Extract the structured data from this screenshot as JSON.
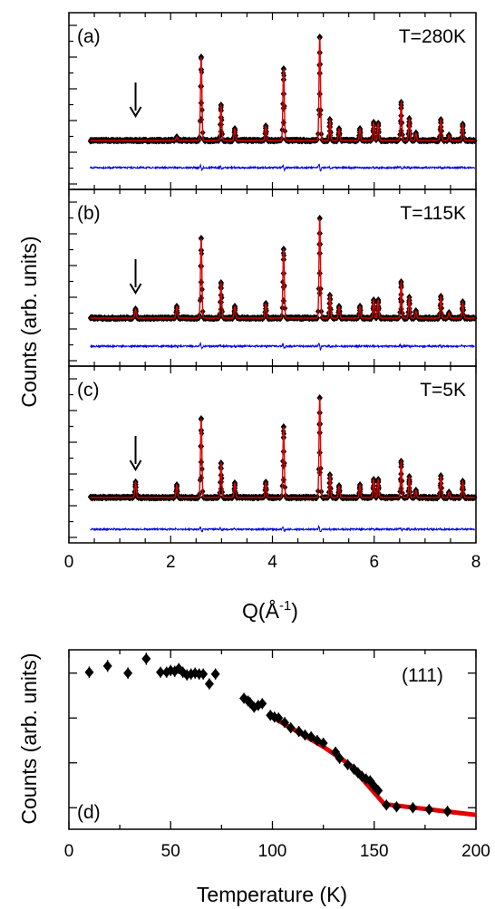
{
  "chart_data": [
    {
      "type": "line",
      "panels": [
        {
          "label": "(a)",
          "temperature": "T=280K",
          "arrow_q": 1.31,
          "peaks": [
            {
              "q": 2.12,
              "h": 4
            },
            {
              "q": 2.6,
              "h": 92
            },
            {
              "q": 2.99,
              "h": 39
            },
            {
              "q": 3.26,
              "h": 13
            },
            {
              "q": 3.87,
              "h": 16
            },
            {
              "q": 4.22,
              "h": 79
            },
            {
              "q": 4.93,
              "h": 114
            },
            {
              "q": 5.13,
              "h": 23
            },
            {
              "q": 5.31,
              "h": 13
            },
            {
              "q": 5.72,
              "h": 13
            },
            {
              "q": 5.99,
              "h": 20
            },
            {
              "q": 6.08,
              "h": 19
            },
            {
              "q": 6.53,
              "h": 42
            },
            {
              "q": 6.69,
              "h": 24
            },
            {
              "q": 6.82,
              "h": 8
            },
            {
              "q": 7.31,
              "h": 23
            },
            {
              "q": 7.47,
              "h": 6
            },
            {
              "q": 7.74,
              "h": 18
            }
          ]
        },
        {
          "label": "(b)",
          "temperature": "T=115K",
          "arrow_q": 1.31,
          "peaks": [
            {
              "q": 1.31,
              "h": 10
            },
            {
              "q": 2.12,
              "h": 13
            },
            {
              "q": 2.6,
              "h": 88
            },
            {
              "q": 2.99,
              "h": 39
            },
            {
              "q": 3.26,
              "h": 13
            },
            {
              "q": 3.87,
              "h": 16
            },
            {
              "q": 4.22,
              "h": 76
            },
            {
              "q": 4.93,
              "h": 110
            },
            {
              "q": 5.13,
              "h": 25
            },
            {
              "q": 5.31,
              "h": 13
            },
            {
              "q": 5.72,
              "h": 13
            },
            {
              "q": 5.99,
              "h": 20
            },
            {
              "q": 6.08,
              "h": 20
            },
            {
              "q": 6.53,
              "h": 40
            },
            {
              "q": 6.69,
              "h": 23
            },
            {
              "q": 6.82,
              "h": 8
            },
            {
              "q": 7.31,
              "h": 24
            },
            {
              "q": 7.47,
              "h": 6
            },
            {
              "q": 7.74,
              "h": 18
            }
          ]
        },
        {
          "label": "(c)",
          "temperature": "T=5K",
          "arrow_q": 1.31,
          "peaks": [
            {
              "q": 1.31,
              "h": 17
            },
            {
              "q": 2.12,
              "h": 14
            },
            {
              "q": 2.6,
              "h": 87
            },
            {
              "q": 2.99,
              "h": 38
            },
            {
              "q": 3.26,
              "h": 16
            },
            {
              "q": 3.87,
              "h": 17
            },
            {
              "q": 4.22,
              "h": 78
            },
            {
              "q": 4.93,
              "h": 110
            },
            {
              "q": 5.13,
              "h": 25
            },
            {
              "q": 5.31,
              "h": 13
            },
            {
              "q": 5.72,
              "h": 14
            },
            {
              "q": 5.99,
              "h": 20
            },
            {
              "q": 6.08,
              "h": 20
            },
            {
              "q": 6.53,
              "h": 40
            },
            {
              "q": 6.69,
              "h": 23
            },
            {
              "q": 6.82,
              "h": 8
            },
            {
              "q": 7.31,
              "h": 24
            },
            {
              "q": 7.47,
              "h": 6
            },
            {
              "q": 7.74,
              "h": 18
            }
          ]
        }
      ],
      "xlabel": "Q(Å",
      "xlabel_sup": "-1",
      "xlabel_end": ")",
      "ylabel": "Counts (arb. units)",
      "xlim": [
        0,
        8
      ],
      "x_ticks": [
        "0",
        "2",
        "4",
        "6",
        "8"
      ],
      "series": [
        {
          "role": "observed",
          "marker": "diamond",
          "color": "#000000"
        },
        {
          "role": "calculated",
          "color": "#e00000"
        },
        {
          "role": "difference",
          "color": "#0000ee"
        }
      ]
    },
    {
      "type": "scatter",
      "panel_label": "(d)",
      "reflection": "(111)",
      "xlabel": "Temperature (K)",
      "ylabel": "Counts (arb. units)",
      "xlim": [
        0,
        200
      ],
      "x_ticks": [
        "0",
        "50",
        "100",
        "150",
        "200"
      ],
      "ylim": [
        0,
        100
      ],
      "points": [
        [
          10,
          87.5,
          2.2
        ],
        [
          19,
          91,
          2.3
        ],
        [
          29,
          87,
          2.2
        ],
        [
          38,
          95,
          2.4
        ],
        [
          45,
          87.5,
          2.1
        ],
        [
          48,
          87.5,
          2.1
        ],
        [
          50,
          88.5,
          2.1
        ],
        [
          52,
          88,
          2.1
        ],
        [
          54,
          89.5,
          2.1
        ],
        [
          56,
          87.5,
          2.1
        ],
        [
          58,
          86,
          2.1
        ],
        [
          60,
          86.5,
          2.1
        ],
        [
          62,
          87,
          2.1
        ],
        [
          64,
          86.5,
          2.1
        ],
        [
          66,
          86.5,
          2.1
        ],
        [
          69,
          81,
          2.1
        ],
        [
          72,
          86.5,
          2.1
        ],
        [
          86,
          73,
          2.0
        ],
        [
          88,
          71.5,
          2.0
        ],
        [
          89,
          70.5,
          2.0
        ],
        [
          91,
          68,
          2.0
        ],
        [
          93,
          69,
          2.0
        ],
        [
          95,
          70,
          2.0
        ],
        [
          99,
          63.5,
          2.0
        ],
        [
          101,
          62.5,
          2.0
        ],
        [
          103,
          62,
          2.0
        ],
        [
          106,
          59.5,
          2.0
        ],
        [
          109,
          56.5,
          2.0
        ],
        [
          113,
          54.5,
          2.0
        ],
        [
          116,
          52.5,
          2.0
        ],
        [
          119,
          51.5,
          2.0
        ],
        [
          122,
          49.5,
          2.0
        ],
        [
          125,
          48,
          2.0
        ],
        [
          131,
          43,
          2.0
        ],
        [
          133,
          39.5,
          2.0
        ],
        [
          137,
          36,
          2.0
        ],
        [
          140,
          33.5,
          2.0
        ],
        [
          142,
          31.5,
          2.0
        ],
        [
          144,
          29.5,
          2.0
        ],
        [
          146,
          28,
          2.0
        ],
        [
          148,
          27,
          2.0
        ],
        [
          150,
          24,
          2.0
        ],
        [
          152,
          21.5,
          2.0
        ],
        [
          156,
          13.5,
          2.0
        ],
        [
          161,
          12.5,
          2.0
        ],
        [
          169,
          12,
          2.0
        ],
        [
          177,
          11,
          2.0
        ],
        [
          186,
          10,
          2.0
        ]
      ],
      "fit": [
        [
          100,
          62.5
        ],
        [
          125,
          46
        ],
        [
          138,
          36
        ],
        [
          155,
          14
        ],
        [
          200,
          8
        ]
      ],
      "fit_color": "#e00000"
    }
  ]
}
